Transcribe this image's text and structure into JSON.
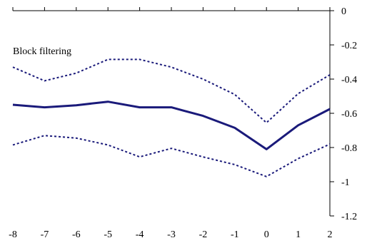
{
  "chart_data": {
    "type": "line",
    "title": "Block filtering",
    "xlabel": "",
    "ylabel": "",
    "x": [
      -8,
      -7,
      -6,
      -5,
      -4,
      -3,
      -2,
      -1,
      0,
      1,
      2
    ],
    "xlim": [
      -8,
      2
    ],
    "ylim": [
      -1.2,
      0
    ],
    "x_ticks": [
      "-8",
      "-7",
      "-6",
      "-5",
      "-4",
      "-3",
      "-2",
      "-1",
      "0",
      "1",
      "2"
    ],
    "y_ticks": [
      "0",
      "-0.2",
      "-0.4",
      "-0.6",
      "-0.8",
      "-1",
      "-1.2"
    ],
    "y_tick_values": [
      0,
      -0.2,
      -0.4,
      -0.6,
      -0.8,
      -1,
      -1.2
    ],
    "y_axis_side": "right",
    "grid": false,
    "legend": "none",
    "series": [
      {
        "values": [
          -0.55,
          -0.565,
          -0.553,
          -0.532,
          -0.565,
          -0.565,
          -0.615,
          -0.685,
          -0.81,
          -0.67,
          -0.575
        ],
        "style": "solid",
        "color": "#1a1a7a"
      },
      {
        "values": [
          -0.33,
          -0.41,
          -0.365,
          -0.285,
          -0.285,
          -0.33,
          -0.4,
          -0.49,
          -0.655,
          -0.485,
          -0.375
        ],
        "style": "dashed",
        "color": "#1a1a7a"
      },
      {
        "values": [
          -0.785,
          -0.73,
          -0.745,
          -0.785,
          -0.855,
          -0.805,
          -0.855,
          -0.9,
          -0.97,
          -0.865,
          -0.78
        ],
        "style": "dashed",
        "color": "#1a1a7a"
      }
    ]
  }
}
